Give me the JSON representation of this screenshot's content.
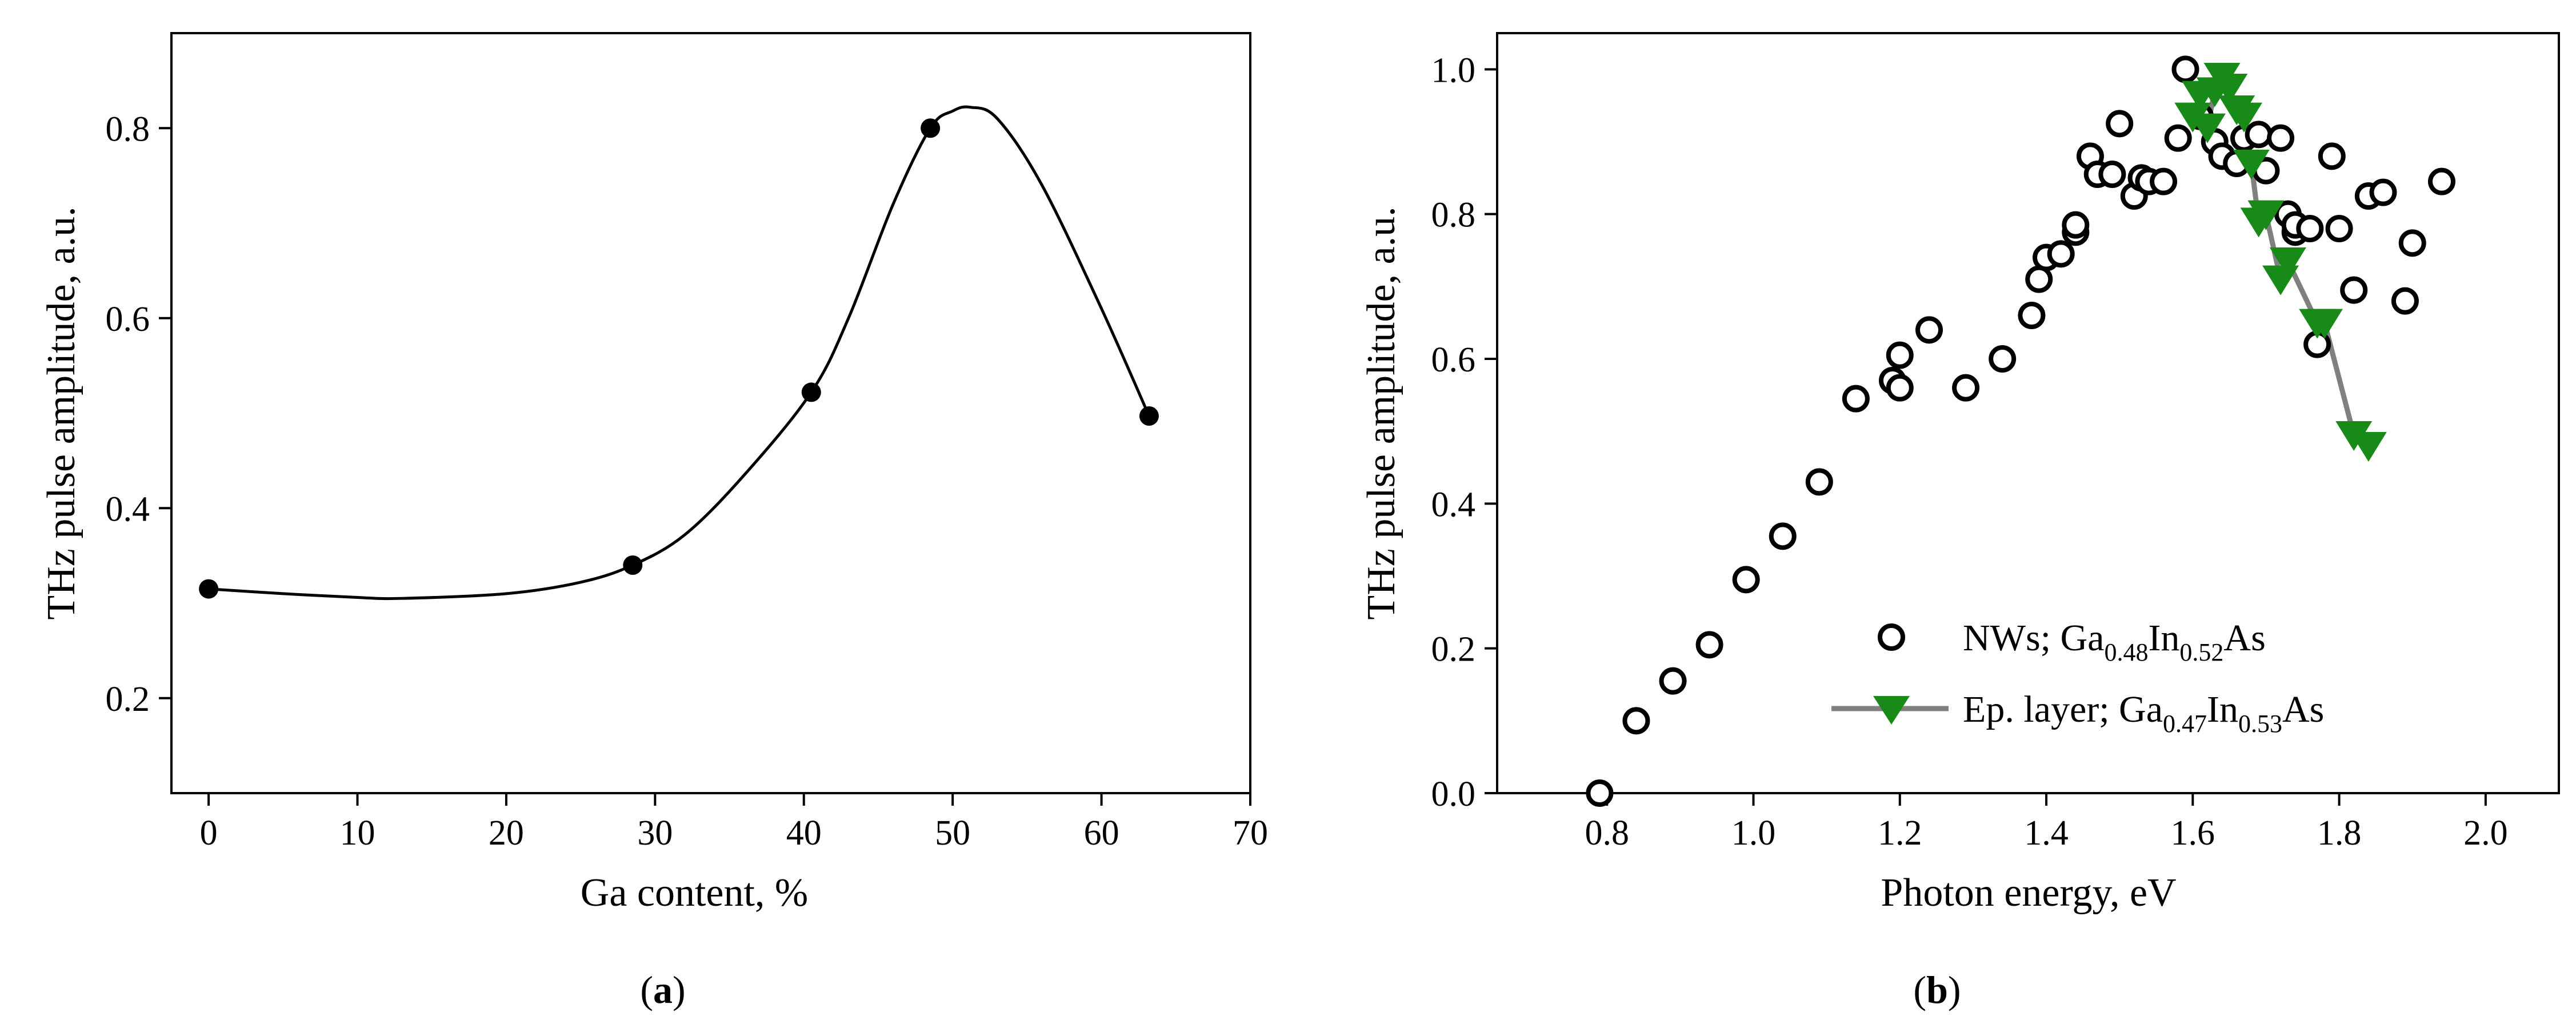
{
  "chart_data": [
    {
      "type": "scatter",
      "panel_label": "a",
      "xlabel": "Ga content, %",
      "ylabel": "THz pulse amplitude, a.u.",
      "xlim": [
        -2.5,
        70
      ],
      "ylim": [
        0.1,
        0.9
      ],
      "x_ticks": [
        0,
        10,
        20,
        30,
        40,
        50,
        60,
        70
      ],
      "y_ticks": [
        0.2,
        0.4,
        0.6,
        0.8
      ],
      "x_tick_labels": [
        "0",
        "10",
        "20",
        "30",
        "40",
        "50",
        "60",
        "70"
      ],
      "y_tick_labels": [
        "0.2",
        "0.4",
        "0.6",
        "0.8"
      ],
      "grid": false,
      "series": [
        {
          "marker": "filled-circle",
          "color": "#000000",
          "x": [
            0,
            28.5,
            40.5,
            48.5,
            63.2
          ],
          "y": [
            0.315,
            0.34,
            0.522,
            0.8,
            0.497
          ]
        }
      ],
      "fit_curve": {
        "style": "smooth spline",
        "color": "#000000",
        "x": [
          0,
          5,
          10,
          13,
          20,
          25,
          28.5,
          32,
          36,
          40.5,
          43,
          46,
          48.5,
          50,
          51.2,
          53,
          56,
          60,
          63.2
        ],
        "y": [
          0.315,
          0.31,
          0.306,
          0.305,
          0.31,
          0.322,
          0.34,
          0.372,
          0.435,
          0.522,
          0.6,
          0.72,
          0.8,
          0.818,
          0.822,
          0.81,
          0.74,
          0.61,
          0.497
        ]
      }
    },
    {
      "type": "scatter",
      "panel_label": "b",
      "xlabel": "Photon energy, eV",
      "ylabel": "THz pulse amplitude, a.u.",
      "xlim": [
        0.65,
        2.1
      ],
      "ylim": [
        0,
        1.05
      ],
      "x_ticks": [
        0.8,
        1.0,
        1.2,
        1.4,
        1.6,
        1.8,
        2.0
      ],
      "y_ticks": [
        0.0,
        0.2,
        0.4,
        0.6,
        0.8,
        1.0
      ],
      "x_tick_labels": [
        "0.8",
        "1.0",
        "1.2",
        "1.4",
        "1.6",
        "1.8",
        "2.0"
      ],
      "y_tick_labels": [
        "0.0",
        "0.2",
        "0.4",
        "0.6",
        "0.8",
        "1.0"
      ],
      "grid": false,
      "legend_position": "center-right",
      "series": [
        {
          "legend": {
            "prefix": "NWs; Ga",
            "sub1": "0.48",
            "mid": "In",
            "sub2": "0.52",
            "suffix": "As"
          },
          "marker": "open-circle",
          "color": "#000000",
          "x": [
            0.79,
            0.84,
            0.89,
            0.94,
            0.99,
            1.04,
            1.09,
            1.14,
            1.19,
            1.2,
            1.2,
            1.24,
            1.29,
            1.34,
            1.38,
            1.39,
            1.4,
            1.42,
            1.44,
            1.44,
            1.46,
            1.47,
            1.49,
            1.5,
            1.52,
            1.53,
            1.54,
            1.56,
            1.58,
            1.59,
            1.61,
            1.63,
            1.64,
            1.66,
            1.67,
            1.69,
            1.7,
            1.72,
            1.73,
            1.74,
            1.74,
            1.76,
            1.77,
            1.79,
            1.8,
            1.82,
            1.84,
            1.86,
            1.89,
            1.9,
            1.94
          ],
          "y": [
            0.0,
            0.1,
            0.155,
            0.205,
            0.295,
            0.355,
            0.43,
            0.545,
            0.57,
            0.56,
            0.605,
            0.64,
            0.56,
            0.6,
            0.66,
            0.71,
            0.74,
            0.745,
            0.775,
            0.785,
            0.88,
            0.855,
            0.855,
            0.925,
            0.825,
            0.85,
            0.845,
            0.845,
            0.905,
            1.0,
            0.935,
            0.9,
            0.88,
            0.87,
            0.905,
            0.91,
            0.86,
            0.905,
            0.8,
            0.775,
            0.785,
            0.78,
            0.62,
            0.88,
            0.78,
            0.695,
            0.825,
            0.83,
            0.68,
            0.76,
            0.845
          ]
        },
        {
          "legend": {
            "prefix": "Ep. layer; Ga",
            "sub1": "0.47",
            "mid": "In",
            "sub2": "0.53",
            "suffix": "As"
          },
          "marker": "filled-triangle-down",
          "color": "#178a17",
          "line_color": "#808080",
          "x": [
            1.6,
            1.61,
            1.62,
            1.63,
            1.64,
            1.65,
            1.66,
            1.67,
            1.68,
            1.69,
            1.7,
            1.72,
            1.73,
            1.77,
            1.78,
            1.82,
            1.84
          ],
          "y": [
            0.935,
            0.965,
            0.92,
            0.97,
            0.99,
            0.975,
            0.945,
            0.935,
            0.87,
            0.79,
            0.8,
            0.71,
            0.735,
            0.65,
            0.65,
            0.495,
            0.48
          ]
        }
      ]
    }
  ]
}
